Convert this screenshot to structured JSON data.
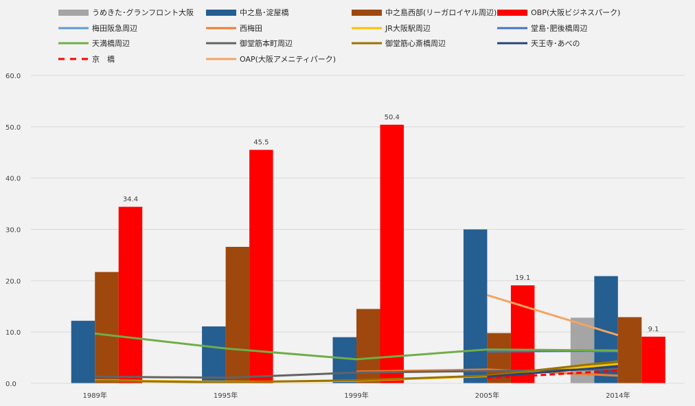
{
  "chart_data": {
    "type": "bar",
    "title": "",
    "xlabel": "",
    "ylabel": "",
    "ylim": [
      0,
      60
    ],
    "yticks": [
      "0.0",
      "10.0",
      "20.0",
      "30.0",
      "40.0",
      "50.0",
      "60.0"
    ],
    "categories": [
      "1989年",
      "1995年",
      "1999年",
      "2005年",
      "2014年"
    ],
    "bar_series": [
      {
        "name": "うめきた･グランフロント大阪",
        "color": "#a5a5a5",
        "values": [
          null,
          null,
          null,
          null,
          12.8
        ]
      },
      {
        "name": "中之島･淀屋橋",
        "color": "#255e91",
        "values": [
          12.2,
          11.1,
          9.0,
          30.0,
          20.9
        ]
      },
      {
        "name": "中之島西部(リーガロイヤル周辺)",
        "color": "#9e480e",
        "values": [
          21.7,
          26.6,
          14.5,
          9.8,
          12.9
        ]
      },
      {
        "name": "OBP(大阪ビジネスパーク)",
        "color": "#ff0000",
        "values": [
          34.4,
          45.5,
          50.4,
          19.1,
          9.1
        ],
        "labels": [
          "34.4",
          "45.5",
          "50.4",
          "19.1",
          "9.1"
        ]
      }
    ],
    "line_series": [
      {
        "name": "梅田阪急周辺",
        "color": "#5b9bd5",
        "values": [
          null,
          null,
          null,
          6.3,
          6.3
        ]
      },
      {
        "name": "西梅田",
        "color": "#ed7d31",
        "values": [
          null,
          null,
          2.3,
          2.7,
          1.5
        ]
      },
      {
        "name": "JR大阪駅周辺",
        "color": "#ffc000",
        "values": [
          0.6,
          0.3,
          0.5,
          1.4,
          3.8
        ]
      },
      {
        "name": "堂島･肥後橋周辺",
        "color": "#4472c4",
        "values": [
          null,
          null,
          null,
          6.2,
          6.4
        ]
      },
      {
        "name": "天満橋周辺",
        "color": "#70ad47",
        "values": [
          9.7,
          6.8,
          4.7,
          6.6,
          6.4
        ]
      },
      {
        "name": "御堂筋本町周辺",
        "color": "#636363",
        "values": [
          1.3,
          1.1,
          2.1,
          2.4,
          2.8
        ]
      },
      {
        "name": "御堂筋心斎橋周辺",
        "color": "#997300",
        "values": [
          0.5,
          0.2,
          0.6,
          1.5,
          4.3
        ]
      },
      {
        "name": "天王寺･あべの",
        "color": "#264478",
        "values": [
          null,
          null,
          null,
          1.3,
          3.3
        ]
      },
      {
        "name": "京　橋",
        "color": "#ff0000",
        "dashed": true,
        "values": [
          null,
          null,
          null,
          1.0,
          2.5
        ]
      },
      {
        "name": "OAP(大阪アメニティパーク)",
        "color": "#f4a460",
        "values": [
          null,
          null,
          null,
          17.2,
          9.4
        ]
      }
    ],
    "grid": true,
    "legend_placement": "top"
  }
}
